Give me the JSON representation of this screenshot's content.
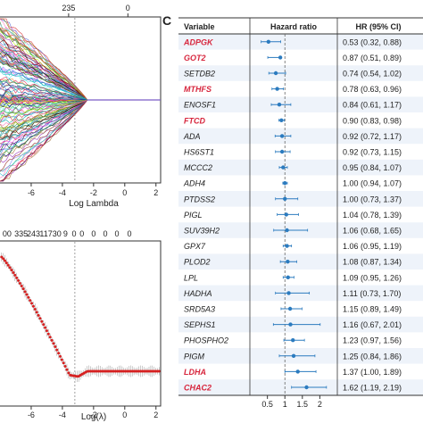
{
  "chart_data": [
    {
      "type": "line",
      "panel": "lasso-coefficient-paths",
      "xlabel": "Log Lambda",
      "x_ticks": [
        -6,
        -4,
        -2,
        0,
        2
      ],
      "top_ticks": [
        "235",
        "0"
      ],
      "xlim": [
        -8,
        2.3
      ],
      "ylim": [
        -1,
        1
      ],
      "reference_line_x": -3.2,
      "grid": false
    },
    {
      "type": "scatter",
      "panel": "cross-validation-error",
      "xlabel": "Log(λ)",
      "x_ticks": [
        -6,
        -4,
        -2,
        0,
        2
      ],
      "top_ticks": [
        "00",
        "335",
        "243",
        "117",
        "30",
        "9",
        "0",
        "0",
        "0",
        "0",
        "0",
        "0"
      ],
      "xlim": [
        -8,
        2.3
      ],
      "reference_line_x": -3.2,
      "grid": false
    },
    {
      "type": "table",
      "panel_label": "C",
      "columns": [
        "Variable",
        "Hazard ratio",
        "HR (95% CI)"
      ],
      "x_ticks": [
        "0.5",
        "1",
        "1.5",
        "2"
      ],
      "xlim": [
        0.1,
        2.45
      ],
      "reference_value": 1,
      "rows": [
        {
          "variable": "ADPGK",
          "highlight": true,
          "hr": 0.53,
          "lo": 0.32,
          "hi": 0.88,
          "ci_text": "0.53 (0.32, 0.88)"
        },
        {
          "variable": "GOT2",
          "highlight": true,
          "hr": 0.87,
          "lo": 0.51,
          "hi": 0.89,
          "ci_text": "0.87 (0.51, 0.89)"
        },
        {
          "variable": "SETDB2",
          "highlight": false,
          "hr": 0.74,
          "lo": 0.54,
          "hi": 1.02,
          "ci_text": "0.74 (0.54, 1.02)"
        },
        {
          "variable": "MTHFS",
          "highlight": true,
          "hr": 0.78,
          "lo": 0.63,
          "hi": 0.96,
          "ci_text": "0.78 (0.63, 0.96)"
        },
        {
          "variable": "ENOSF1",
          "highlight": false,
          "hr": 0.84,
          "lo": 0.61,
          "hi": 1.17,
          "ci_text": "0.84 (0.61, 1.17)"
        },
        {
          "variable": "FTCD",
          "highlight": true,
          "hr": 0.9,
          "lo": 0.83,
          "hi": 0.98,
          "ci_text": "0.90 (0.83, 0.98)"
        },
        {
          "variable": "ADA",
          "highlight": false,
          "hr": 0.92,
          "lo": 0.72,
          "hi": 1.17,
          "ci_text": "0.92 (0.72, 1.17)"
        },
        {
          "variable": "HS6ST1",
          "highlight": false,
          "hr": 0.92,
          "lo": 0.73,
          "hi": 1.15,
          "ci_text": "0.92 (0.73, 1.15)"
        },
        {
          "variable": "MCCC2",
          "highlight": false,
          "hr": 0.95,
          "lo": 0.84,
          "hi": 1.07,
          "ci_text": "0.95 (0.84, 1.07)"
        },
        {
          "variable": "ADH4",
          "highlight": false,
          "hr": 1.0,
          "lo": 0.94,
          "hi": 1.07,
          "ci_text": "1.00 (0.94, 1.07)"
        },
        {
          "variable": "PTDSS2",
          "highlight": false,
          "hr": 1.0,
          "lo": 0.73,
          "hi": 1.37,
          "ci_text": "1.00 (0.73, 1.37)"
        },
        {
          "variable": "PIGL",
          "highlight": false,
          "hr": 1.04,
          "lo": 0.78,
          "hi": 1.39,
          "ci_text": "1.04 (0.78, 1.39)"
        },
        {
          "variable": "SUV39H2",
          "highlight": false,
          "hr": 1.06,
          "lo": 0.68,
          "hi": 1.65,
          "ci_text": "1.06 (0.68, 1.65)"
        },
        {
          "variable": "GPX7",
          "highlight": false,
          "hr": 1.06,
          "lo": 0.95,
          "hi": 1.19,
          "ci_text": "1.06 (0.95, 1.19)"
        },
        {
          "variable": "PLOD2",
          "highlight": false,
          "hr": 1.08,
          "lo": 0.87,
          "hi": 1.34,
          "ci_text": "1.08 (0.87, 1.34)"
        },
        {
          "variable": "LPL",
          "highlight": false,
          "hr": 1.09,
          "lo": 0.95,
          "hi": 1.26,
          "ci_text": "1.09 (0.95, 1.26)"
        },
        {
          "variable": "HADHA",
          "highlight": false,
          "hr": 1.11,
          "lo": 0.73,
          "hi": 1.7,
          "ci_text": "1.11 (0.73, 1.70)"
        },
        {
          "variable": "SRD5A3",
          "highlight": false,
          "hr": 1.15,
          "lo": 0.89,
          "hi": 1.49,
          "ci_text": "1.15 (0.89, 1.49)"
        },
        {
          "variable": "SEPHS1",
          "highlight": false,
          "hr": 1.16,
          "lo": 0.67,
          "hi": 2.01,
          "ci_text": "1.16 (0.67, 2.01)"
        },
        {
          "variable": "PHOSPHO2",
          "highlight": false,
          "hr": 1.23,
          "lo": 0.97,
          "hi": 1.56,
          "ci_text": "1.23 (0.97, 1.56)"
        },
        {
          "variable": "PIGM",
          "highlight": false,
          "hr": 1.25,
          "lo": 0.84,
          "hi": 1.86,
          "ci_text": "1.25 (0.84, 1.86)"
        },
        {
          "variable": "LDHA",
          "highlight": true,
          "hr": 1.37,
          "lo": 1.0,
          "hi": 1.89,
          "ci_text": "1.37 (1.00, 1.89)"
        },
        {
          "variable": "CHAC2",
          "highlight": true,
          "hr": 1.62,
          "lo": 1.19,
          "hi": 2.19,
          "ci_text": "1.62 (1.19, 2.19)"
        }
      ]
    }
  ],
  "colors": {
    "highlight_text": "#d7263d",
    "point": "#2b7bbf",
    "cv_point": "#d62020",
    "cv_errorbar": "#9a9a9a",
    "zebra": "#eef3fa",
    "reference_line": "#666666"
  }
}
